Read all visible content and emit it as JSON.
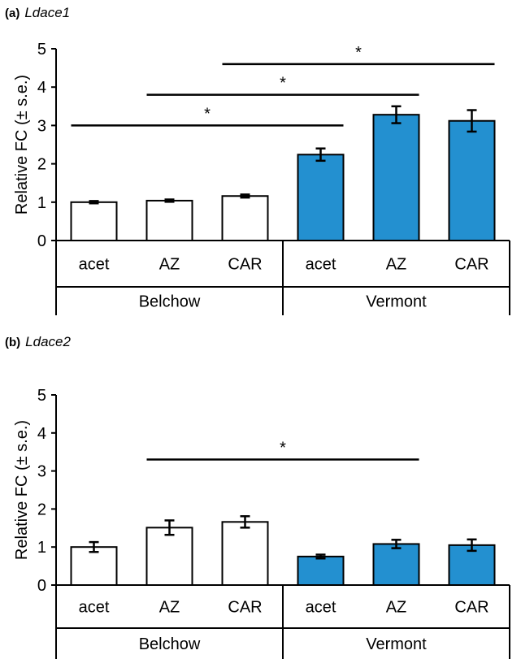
{
  "chart_data": [
    {
      "type": "bar",
      "panel_label": "(a)",
      "title": "Ldace1",
      "ylabel": "Relative FC (± s.e.)",
      "ylim": [
        0,
        5
      ],
      "yticks": [
        "0",
        "1",
        "2",
        "3",
        "4",
        "5"
      ],
      "categories": [
        "acet",
        "AZ",
        "CAR",
        "acet",
        "AZ",
        "CAR"
      ],
      "groups": [
        {
          "label": "Belchow",
          "count": 3,
          "color": "#ffffff"
        },
        {
          "label": "Vermont",
          "count": 3,
          "color": "#2390d0"
        }
      ],
      "values": [
        1.0,
        1.04,
        1.16,
        2.24,
        3.28,
        3.12
      ],
      "errors": [
        0.03,
        0.03,
        0.04,
        0.16,
        0.22,
        0.28
      ],
      "significance": [
        {
          "from": 0,
          "to": 3,
          "y": 3.0,
          "label": "*"
        },
        {
          "from": 1,
          "to": 4,
          "y": 3.8,
          "label": "*"
        },
        {
          "from": 2,
          "to": 5,
          "y": 4.6,
          "label": "*"
        }
      ]
    },
    {
      "type": "bar",
      "panel_label": "(b)",
      "title": "Ldace2",
      "ylabel": "Relative FC (± s.e.)",
      "ylim": [
        0,
        5
      ],
      "yticks": [
        "0",
        "1",
        "2",
        "3",
        "4",
        "5"
      ],
      "categories": [
        "acet",
        "AZ",
        "CAR",
        "acet",
        "AZ",
        "CAR"
      ],
      "groups": [
        {
          "label": "Belchow",
          "count": 3,
          "color": "#ffffff"
        },
        {
          "label": "Vermont",
          "count": 3,
          "color": "#2390d0"
        }
      ],
      "values": [
        1.0,
        1.51,
        1.66,
        0.75,
        1.08,
        1.05
      ],
      "errors": [
        0.13,
        0.19,
        0.15,
        0.05,
        0.11,
        0.15
      ],
      "significance": [
        {
          "from": 1,
          "to": 4,
          "y": 3.3,
          "label": "*"
        }
      ]
    }
  ]
}
